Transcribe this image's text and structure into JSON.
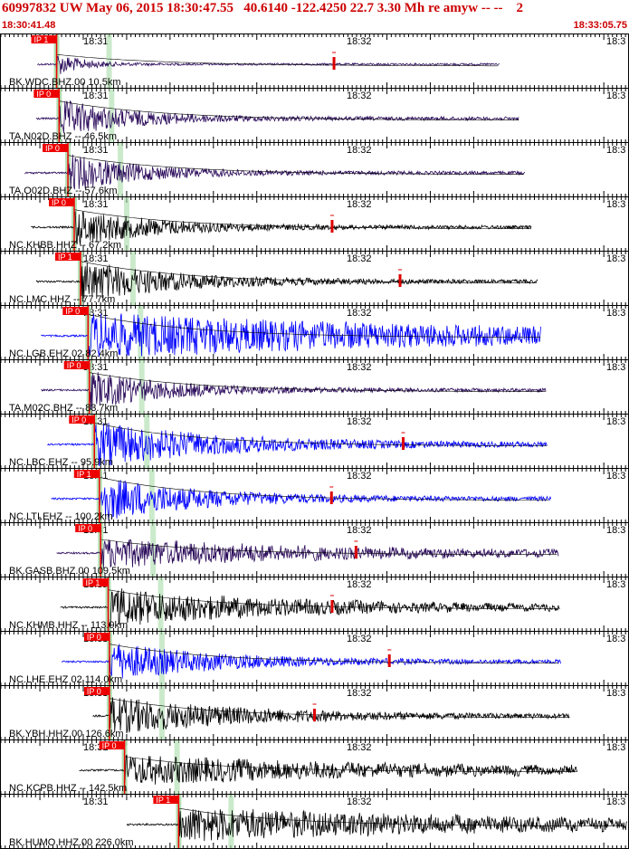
{
  "header": {
    "title": "60997832 UW May 06, 2015 18:30:47.55   40.6140 -122.4250 22.7 3.30 Mh re amyw -- --    2",
    "start_time": "18:30:41.48",
    "end_time": "18:33:05.75"
  },
  "colors": {
    "header_text": "#cc0000",
    "pick_box": "#ee0000",
    "vertical_trace": "#000000",
    "velocity_trace": "#2a0a5a",
    "blue_trace": "#0000ff",
    "green_band": "#a8dca8",
    "magnitude_marker": "#dd0000"
  },
  "time_labels": [
    "18:31",
    "18:32",
    "18:3"
  ],
  "traces": [
    {
      "channel": "BK.WDC.BHZ.00 10.5km",
      "pick": "IP 1",
      "color": "velocity_trace",
      "start_frac": 0.06,
      "onset_frac": 0.09,
      "end_frac": 0.795,
      "amp": 0.45,
      "decay": 0.06,
      "period": 3,
      "noise": 0.02,
      "mag_marker_frac": 0.531
    },
    {
      "channel": "TA.N02D.BHZ -- 46.5km",
      "pick": "IP 0",
      "color": "velocity_trace",
      "start_frac": 0.058,
      "onset_frac": 0.094,
      "end_frac": 0.825,
      "amp": 0.75,
      "decay": 0.16,
      "period": 4,
      "noise": 0.02,
      "mag_marker_frac": null
    },
    {
      "channel": "TA.O02D.BHZ -- 57.6km",
      "pick": "IP 0",
      "color": "velocity_trace",
      "start_frac": 0.04,
      "onset_frac": 0.108,
      "end_frac": 0.835,
      "amp": 0.75,
      "decay": 0.16,
      "period": 4,
      "noise": 0.02,
      "mag_marker_frac": null
    },
    {
      "channel": "NC.KHBB.HHZ -- 67.2km",
      "pick": "IP 0",
      "color": "vertical_trace",
      "start_frac": 0.05,
      "onset_frac": 0.118,
      "end_frac": 0.845,
      "amp": 0.75,
      "decay": 0.18,
      "period": 4,
      "noise": 0.02,
      "mag_marker_frac": 0.528
    },
    {
      "channel": "NC.LMC.HHZ -- 77.7km",
      "pick": "IP 1",
      "color": "vertical_trace",
      "start_frac": 0.058,
      "onset_frac": 0.128,
      "end_frac": 0.855,
      "amp": 0.85,
      "decay": 0.2,
      "period": 4,
      "noise": 0.02,
      "mag_marker_frac": 0.636
    },
    {
      "channel": "NC.LGB.EHZ 02 82.4km",
      "pick": "IP 0",
      "color": "blue_trace",
      "start_frac": 0.066,
      "onset_frac": 0.14,
      "end_frac": 0.86,
      "amp": 0.9,
      "decay": 0.9,
      "period": 3,
      "noise": 0.05,
      "mag_marker_frac": null
    },
    {
      "channel": "TA.M02C.BHZ -- 83.7km",
      "pick": "IP 0",
      "color": "velocity_trace",
      "start_frac": 0.066,
      "onset_frac": 0.142,
      "end_frac": 0.868,
      "amp": 0.75,
      "decay": 0.18,
      "period": 4,
      "noise": 0.02,
      "mag_marker_frac": null
    },
    {
      "channel": "NC.LBC.EHZ -- 95.9km",
      "pick": "IP 0",
      "color": "blue_trace",
      "start_frac": 0.076,
      "onset_frac": 0.15,
      "end_frac": 0.87,
      "amp": 0.9,
      "decay": 0.28,
      "period": 3,
      "noise": 0.02,
      "mag_marker_frac": 0.641
    },
    {
      "channel": "NC.LTI.EHZ -- 100.2km",
      "pick": "IP 1",
      "color": "blue_trace",
      "start_frac": 0.082,
      "onset_frac": 0.158,
      "end_frac": 0.876,
      "amp": 0.9,
      "decay": 0.22,
      "period": 3,
      "noise": 0.02,
      "mag_marker_frac": 0.527
    },
    {
      "channel": "BK.GASB.BHZ.00 109.5km",
      "pick": "IP 0",
      "color": "velocity_trace",
      "start_frac": 0.09,
      "onset_frac": 0.16,
      "end_frac": 0.888,
      "amp": 0.6,
      "decay": 0.5,
      "period": 12,
      "noise": 0.15,
      "mag_marker_frac": 0.566
    },
    {
      "channel": "NC.KHMB.HHZ -- 113.9km",
      "pick": "IP 1",
      "color": "vertical_trace",
      "start_frac": 0.096,
      "onset_frac": 0.172,
      "end_frac": 0.89,
      "amp": 0.75,
      "decay": 0.4,
      "period": 10,
      "noise": 0.15,
      "mag_marker_frac": 0.528
    },
    {
      "channel": "NC.LHE.EHZ 02 114.0km",
      "pick": "IP 0",
      "color": "blue_trace",
      "start_frac": 0.098,
      "onset_frac": 0.174,
      "end_frac": 0.892,
      "amp": 0.75,
      "decay": 0.25,
      "period": 3,
      "noise": 0.02,
      "mag_marker_frac": 0.619
    },
    {
      "channel": "BK.YBH.HHZ.00 126.6km",
      "pick": "IP 0",
      "color": "vertical_trace",
      "start_frac": 0.148,
      "onset_frac": 0.174,
      "end_frac": 0.906,
      "amp": 0.75,
      "decay": 0.3,
      "period": 5,
      "noise": 0.02,
      "mag_marker_frac": 0.5
    },
    {
      "channel": "NC.KCPB.HHZ -- 142.5km",
      "pick": "IP 0",
      "color": "vertical_trace",
      "start_frac": 0.126,
      "onset_frac": 0.198,
      "end_frac": 0.918,
      "amp": 0.6,
      "decay": 0.6,
      "period": 14,
      "noise": 0.2,
      "mag_marker_frac": null
    },
    {
      "channel": "BK.HUMO.HHZ.00 226.0km",
      "pick": "IP 1",
      "color": "vertical_trace",
      "start_frac": 0.202,
      "onset_frac": 0.284,
      "end_frac": 1.0,
      "amp": 0.7,
      "decay": 0.7,
      "period": 10,
      "noise": 0.3,
      "mag_marker_frac": null
    }
  ]
}
